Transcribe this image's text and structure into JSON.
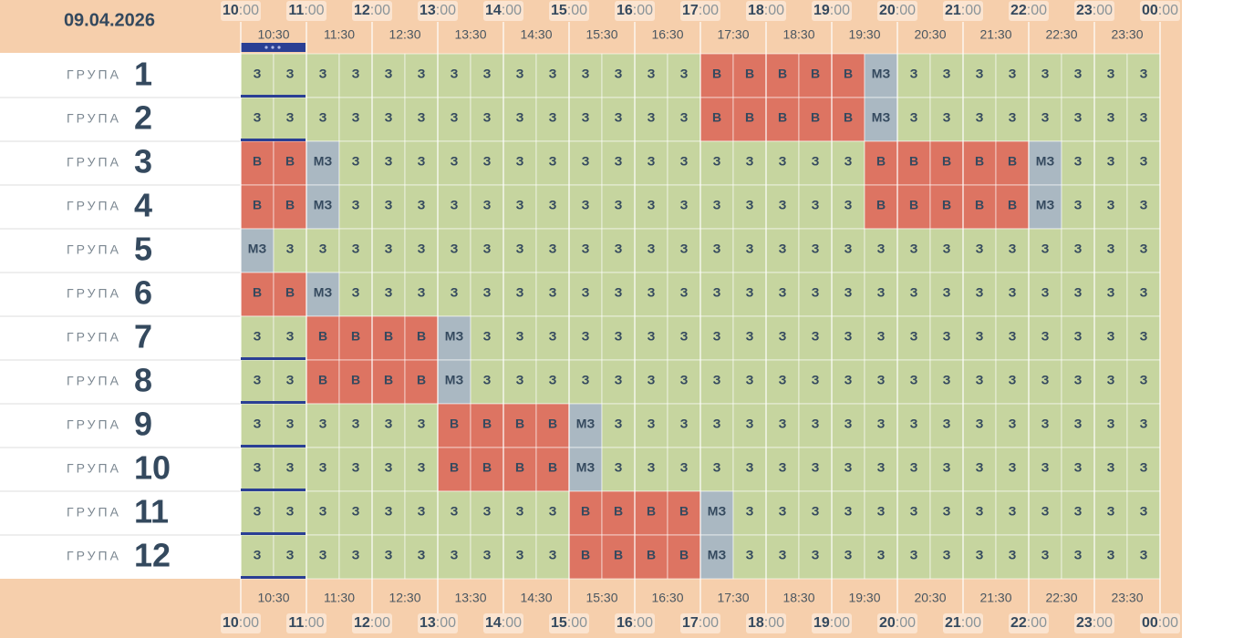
{
  "date": "09.04.2026",
  "hours": [
    "10:00",
    "11:00",
    "12:00",
    "13:00",
    "14:00",
    "15:00",
    "16:00",
    "17:00",
    "18:00",
    "19:00",
    "20:00",
    "21:00",
    "22:00",
    "23:00",
    "00:00"
  ],
  "half_hours": [
    "10:30",
    "11:30",
    "12:30",
    "13:30",
    "14:30",
    "15:30",
    "16:30",
    "17:30",
    "18:30",
    "19:30",
    "20:30",
    "21:30",
    "22:30",
    "23:30"
  ],
  "state_colors": {
    "З": "#c6d59f",
    "В": "#dd7462",
    "МЗ": "#aab8c2"
  },
  "groups": [
    {
      "label": "ГРУПА",
      "number": "1",
      "cells": [
        "З",
        "З",
        "З",
        "З",
        "З",
        "З",
        "З",
        "З",
        "З",
        "З",
        "З",
        "З",
        "З",
        "З",
        "В",
        "В",
        "В",
        "В",
        "В",
        "МЗ",
        "З",
        "З",
        "З",
        "З",
        "З",
        "З",
        "З",
        "З"
      ]
    },
    {
      "label": "ГРУПА",
      "number": "2",
      "cells": [
        "З",
        "З",
        "З",
        "З",
        "З",
        "З",
        "З",
        "З",
        "З",
        "З",
        "З",
        "З",
        "З",
        "З",
        "В",
        "В",
        "В",
        "В",
        "В",
        "МЗ",
        "З",
        "З",
        "З",
        "З",
        "З",
        "З",
        "З",
        "З"
      ]
    },
    {
      "label": "ГРУПА",
      "number": "3",
      "cells": [
        "В",
        "В",
        "МЗ",
        "З",
        "З",
        "З",
        "З",
        "З",
        "З",
        "З",
        "З",
        "З",
        "З",
        "З",
        "З",
        "З",
        "З",
        "З",
        "З",
        "В",
        "В",
        "В",
        "В",
        "В",
        "МЗ",
        "З",
        "З",
        "З"
      ]
    },
    {
      "label": "ГРУПА",
      "number": "4",
      "cells": [
        "В",
        "В",
        "МЗ",
        "З",
        "З",
        "З",
        "З",
        "З",
        "З",
        "З",
        "З",
        "З",
        "З",
        "З",
        "З",
        "З",
        "З",
        "З",
        "З",
        "В",
        "В",
        "В",
        "В",
        "В",
        "МЗ",
        "З",
        "З",
        "З"
      ]
    },
    {
      "label": "ГРУПА",
      "number": "5",
      "cells": [
        "МЗ",
        "З",
        "З",
        "З",
        "З",
        "З",
        "З",
        "З",
        "З",
        "З",
        "З",
        "З",
        "З",
        "З",
        "З",
        "З",
        "З",
        "З",
        "З",
        "З",
        "З",
        "З",
        "З",
        "З",
        "З",
        "З",
        "З",
        "З"
      ]
    },
    {
      "label": "ГРУПА",
      "number": "6",
      "cells": [
        "В",
        "В",
        "МЗ",
        "З",
        "З",
        "З",
        "З",
        "З",
        "З",
        "З",
        "З",
        "З",
        "З",
        "З",
        "З",
        "З",
        "З",
        "З",
        "З",
        "З",
        "З",
        "З",
        "З",
        "З",
        "З",
        "З",
        "З",
        "З"
      ]
    },
    {
      "label": "ГРУПА",
      "number": "7",
      "cells": [
        "З",
        "З",
        "В",
        "В",
        "В",
        "В",
        "МЗ",
        "З",
        "З",
        "З",
        "З",
        "З",
        "З",
        "З",
        "З",
        "З",
        "З",
        "З",
        "З",
        "З",
        "З",
        "З",
        "З",
        "З",
        "З",
        "З",
        "З",
        "З"
      ]
    },
    {
      "label": "ГРУПА",
      "number": "8",
      "cells": [
        "З",
        "З",
        "В",
        "В",
        "В",
        "В",
        "МЗ",
        "З",
        "З",
        "З",
        "З",
        "З",
        "З",
        "З",
        "З",
        "З",
        "З",
        "З",
        "З",
        "З",
        "З",
        "З",
        "З",
        "З",
        "З",
        "З",
        "З",
        "З"
      ]
    },
    {
      "label": "ГРУПА",
      "number": "9",
      "cells": [
        "З",
        "З",
        "З",
        "З",
        "З",
        "З",
        "В",
        "В",
        "В",
        "В",
        "МЗ",
        "З",
        "З",
        "З",
        "З",
        "З",
        "З",
        "З",
        "З",
        "З",
        "З",
        "З",
        "З",
        "З",
        "З",
        "З",
        "З",
        "З"
      ]
    },
    {
      "label": "ГРУПА",
      "number": "10",
      "cells": [
        "З",
        "З",
        "З",
        "З",
        "З",
        "З",
        "В",
        "В",
        "В",
        "В",
        "МЗ",
        "З",
        "З",
        "З",
        "З",
        "З",
        "З",
        "З",
        "З",
        "З",
        "З",
        "З",
        "З",
        "З",
        "З",
        "З",
        "З",
        "З"
      ]
    },
    {
      "label": "ГРУПА",
      "number": "11",
      "cells": [
        "З",
        "З",
        "З",
        "З",
        "З",
        "З",
        "З",
        "З",
        "З",
        "З",
        "В",
        "В",
        "В",
        "В",
        "МЗ",
        "З",
        "З",
        "З",
        "З",
        "З",
        "З",
        "З",
        "З",
        "З",
        "З",
        "З",
        "З",
        "З"
      ]
    },
    {
      "label": "ГРУПА",
      "number": "12",
      "cells": [
        "З",
        "З",
        "З",
        "З",
        "З",
        "З",
        "З",
        "З",
        "З",
        "З",
        "В",
        "В",
        "В",
        "В",
        "МЗ",
        "З",
        "З",
        "З",
        "З",
        "З",
        "З",
        "З",
        "З",
        "З",
        "З",
        "З",
        "З",
        "З"
      ]
    }
  ]
}
